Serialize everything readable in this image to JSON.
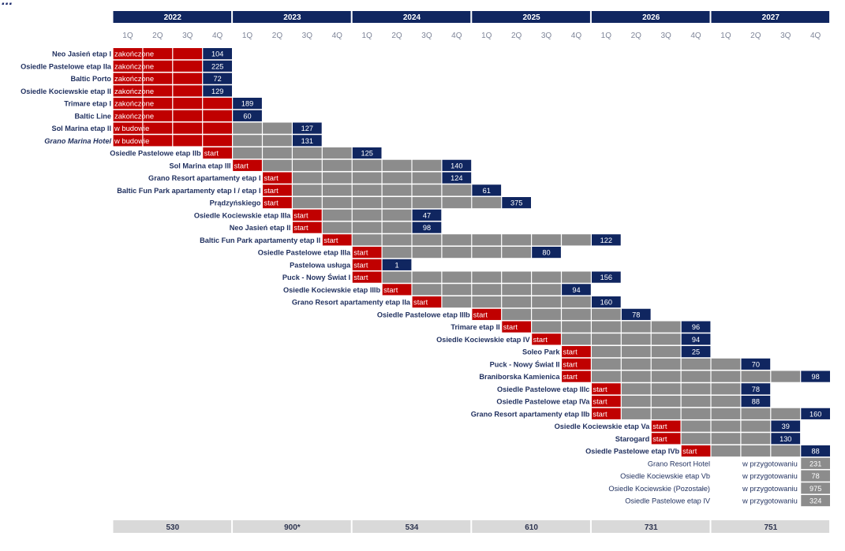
{
  "title_fragment": "...",
  "colors": {
    "header": "#102660",
    "finished": "#c00000",
    "in_progress_gray": "#8c8c8c",
    "delivery": "#102660",
    "totals_band": "#d9d9d9"
  },
  "chart_data": {
    "type": "table",
    "years": [
      "2022",
      "2023",
      "2024",
      "2025",
      "2026",
      "2027"
    ],
    "quarters": [
      "1Q",
      "2Q",
      "3Q",
      "4Q"
    ],
    "legend_states": [
      "zakończone",
      "w budowie",
      "start",
      "w przygotowaniu"
    ],
    "projects": [
      {
        "name": "Neo Jasień etap I",
        "status": "zakończone",
        "start_q": 0,
        "delivery_q": 3,
        "units": "104"
      },
      {
        "name": "Osiedle Pastelowe etap IIa",
        "status": "zakończone",
        "start_q": 0,
        "delivery_q": 3,
        "units": "225"
      },
      {
        "name": "Baltic Porto",
        "status": "zakończone",
        "start_q": 0,
        "delivery_q": 3,
        "units": "72"
      },
      {
        "name": "Osiedle Kociewskie etap II",
        "status": "zakończone",
        "start_q": 0,
        "delivery_q": 3,
        "units": "129"
      },
      {
        "name": "Trimare etap I",
        "status": "zakończone",
        "start_q": 0,
        "delivery_q": 4,
        "units": "189"
      },
      {
        "name": "Baltic Line",
        "status": "zakończone",
        "start_q": 0,
        "delivery_q": 4,
        "units": "60"
      },
      {
        "name": "Sol Marina etap II",
        "status": "w budowie",
        "start_q": 0,
        "red_until_q": 4,
        "delivery_q": 6,
        "units": "127"
      },
      {
        "name": "Grano Marina Hotel",
        "status": "w budowie",
        "start_q": 0,
        "red_until_q": 4,
        "delivery_q": 6,
        "units": "131",
        "italic": true
      },
      {
        "name": "Osiedle Pastelowe etap IIb",
        "status": "start",
        "start_q": 3,
        "red_until_q": 4,
        "delivery_q": 8,
        "units": "125"
      },
      {
        "name": "Sol Marina etap III",
        "status": "start",
        "start_q": 4,
        "delivery_q": 11,
        "units": "140"
      },
      {
        "name": "Grano Resort apartamenty etap I",
        "status": "start",
        "start_q": 5,
        "delivery_q": 11,
        "units": "124"
      },
      {
        "name": "Baltic Fun Park apartamenty etap I / etap I",
        "status": "start",
        "start_q": 5,
        "delivery_q": 12,
        "units": "61"
      },
      {
        "name": "Prądzyńskiego",
        "status": "start",
        "start_q": 5,
        "delivery_q": 13,
        "units": "375"
      },
      {
        "name": "Osiedle Kociewskie etap IIIa",
        "status": "start",
        "start_q": 6,
        "delivery_q": 10,
        "units": "47"
      },
      {
        "name": "Neo Jasień etap II",
        "status": "start",
        "start_q": 6,
        "delivery_q": 10,
        "units": "98"
      },
      {
        "name": "Baltic Fun Park apartamenty etap II",
        "status": "start",
        "start_q": 7,
        "delivery_q": 16,
        "units": "122"
      },
      {
        "name": "Osiedle Pastelowe etap IIIa",
        "status": "start",
        "start_q": 8,
        "delivery_q": 14,
        "units": "80"
      },
      {
        "name": "Pastelowa usługa",
        "status": "start",
        "start_q": 8,
        "delivery_q": 9,
        "units": "1"
      },
      {
        "name": "Puck - Nowy Świat I",
        "status": "start",
        "start_q": 8,
        "delivery_q": 16,
        "units": "156"
      },
      {
        "name": "Osiedle Kociewskie etap IIIb",
        "status": "start",
        "start_q": 9,
        "delivery_q": 15,
        "units": "94"
      },
      {
        "name": "Grano Resort apartamenty etap IIa",
        "status": "start",
        "start_q": 10,
        "delivery_q": 16,
        "units": "160"
      },
      {
        "name": "Osiedle Pastelowe etap IIIb",
        "status": "start",
        "start_q": 12,
        "delivery_q": 17,
        "units": "78"
      },
      {
        "name": "Trimare etap II",
        "status": "start",
        "start_q": 13,
        "delivery_q": 19,
        "units": "96"
      },
      {
        "name": "Osiedle Kociewskie etap IV",
        "status": "start",
        "start_q": 14,
        "delivery_q": 19,
        "units": "94"
      },
      {
        "name": "Soleo Park",
        "status": "start",
        "start_q": 15,
        "delivery_q": 19,
        "units": "25"
      },
      {
        "name": "Puck - Nowy Świat II",
        "status": "start",
        "start_q": 15,
        "delivery_q": 21,
        "units": "70"
      },
      {
        "name": "Braniborska Kamienica",
        "status": "start",
        "start_q": 15,
        "delivery_q": 23,
        "units": "98"
      },
      {
        "name": "Osiedle Pastelowe etap IIIc",
        "status": "start",
        "start_q": 16,
        "delivery_q": 21,
        "units": "78"
      },
      {
        "name": "Osiedle Pastelowe etap IVa",
        "status": "start",
        "start_q": 16,
        "delivery_q": 21,
        "units": "88"
      },
      {
        "name": "Grano Resort apartamenty etap IIb",
        "status": "start",
        "start_q": 16,
        "delivery_q": 23,
        "units": "160"
      },
      {
        "name": "Osiedle Kociewskie etap Va",
        "status": "start",
        "start_q": 18,
        "delivery_q": 22,
        "units": "39"
      },
      {
        "name": "Starogard",
        "status": "start",
        "start_q": 18,
        "delivery_q": 22,
        "units": "130"
      },
      {
        "name": "Osiedle Pastelowe etap IVb",
        "status": "start",
        "start_q": 19,
        "delivery_q": 23,
        "units": "88"
      }
    ],
    "pending": [
      {
        "name": "Grano Resort Hotel",
        "status": "w przygotowaniu",
        "units": "231"
      },
      {
        "name": "Osiedle Kociewskie etap Vb",
        "status": "w przygotowaniu",
        "units": "78"
      },
      {
        "name": "Osiedle Kociewskie (Pozostałe)",
        "status": "w przygotowaniu",
        "units": "975"
      },
      {
        "name": "Osiedle Pastelowe etap IV",
        "status": "w przygotowaniu",
        "units": "324"
      }
    ],
    "annual_totals": [
      "530",
      "900*",
      "534",
      "610",
      "731",
      "751"
    ]
  }
}
